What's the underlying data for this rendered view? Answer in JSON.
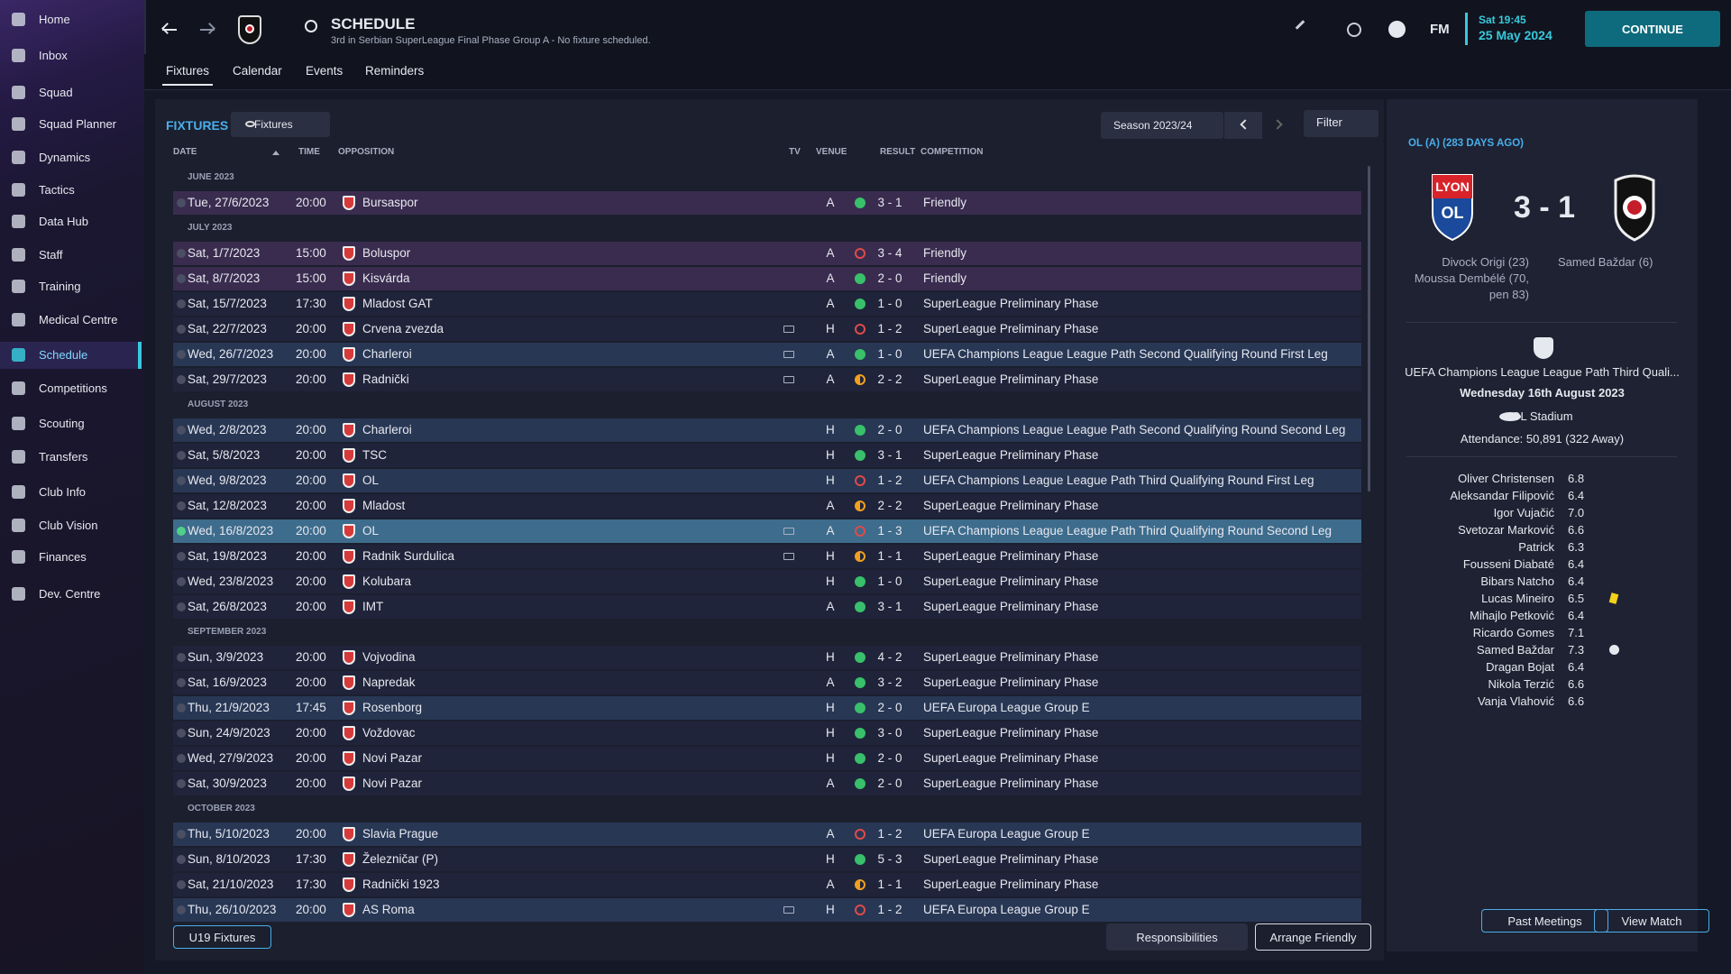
{
  "sidebar": {
    "items": [
      {
        "label": "Home"
      },
      {
        "label": "Inbox"
      },
      {
        "label": "Squad"
      },
      {
        "label": "Squad Planner"
      },
      {
        "label": "Dynamics"
      },
      {
        "label": "Tactics"
      },
      {
        "label": "Data Hub"
      },
      {
        "label": "Staff"
      },
      {
        "label": "Training"
      },
      {
        "label": "Medical Centre"
      },
      {
        "label": "Schedule",
        "active": true
      },
      {
        "label": "Competitions"
      },
      {
        "label": "Scouting"
      },
      {
        "label": "Transfers"
      },
      {
        "label": "Club Info"
      },
      {
        "label": "Club Vision"
      },
      {
        "label": "Finances"
      },
      {
        "label": "Dev. Centre"
      }
    ]
  },
  "header": {
    "title": "SCHEDULE",
    "subtitle": "3rd in Serbian SuperLeague Final Phase Group A - No fixture scheduled.",
    "logo": "FM",
    "time": "Sat 19:45",
    "date": "25 May 2024",
    "continue": "CONTINUE"
  },
  "tabs": [
    {
      "label": "Fixtures",
      "active": true
    },
    {
      "label": "Calendar"
    },
    {
      "label": "Events"
    },
    {
      "label": "Reminders"
    }
  ],
  "fixtures": {
    "title": "FIXTURES",
    "view": "Fixtures",
    "season": "Season 2023/24",
    "filter": "Filter",
    "columns": [
      "DATE",
      "TIME",
      "OPPOSITION",
      "TV",
      "VENUE",
      "RESULT",
      "COMPETITION"
    ],
    "groups": [
      {
        "month": "JUNE 2023",
        "rows": [
          {
            "date": "Tue, 27/6/2023",
            "time": "20:00",
            "opposition": "Bursaspor",
            "venue": "A",
            "result": "3 - 1",
            "competition": "Friendly"
          }
        ]
      },
      {
        "month": "JULY 2023",
        "rows": [
          {
            "date": "Sat, 1/7/2023",
            "time": "15:00",
            "opposition": "Boluspor",
            "venue": "A",
            "result": "3 - 4",
            "competition": "Friendly"
          },
          {
            "date": "Sat, 8/7/2023",
            "time": "15:00",
            "opposition": "Kisvárda",
            "venue": "A",
            "result": "2 - 0",
            "competition": "Friendly"
          },
          {
            "date": "Sat, 15/7/2023",
            "time": "17:30",
            "opposition": "Mladost GAT",
            "venue": "A",
            "result": "1 - 0",
            "competition": "SuperLeague Preliminary Phase"
          },
          {
            "date": "Sat, 22/7/2023",
            "time": "20:00",
            "opposition": "Crvena zvezda",
            "tv": true,
            "venue": "H",
            "result": "1 - 2",
            "competition": "SuperLeague Preliminary Phase"
          },
          {
            "date": "Wed, 26/7/2023",
            "time": "20:00",
            "opposition": "Charleroi",
            "tv": true,
            "venue": "A",
            "result": "1 - 0",
            "competition": "UEFA Champions League League Path Second Qualifying Round First Leg"
          },
          {
            "date": "Sat, 29/7/2023",
            "time": "20:00",
            "opposition": "Radnički",
            "tv": true,
            "venue": "A",
            "result": "2 - 2",
            "competition": "SuperLeague Preliminary Phase"
          }
        ]
      },
      {
        "month": "AUGUST 2023",
        "rows": [
          {
            "date": "Wed, 2/8/2023",
            "time": "20:00",
            "opposition": "Charleroi",
            "venue": "H",
            "result": "2 - 0",
            "competition": "UEFA Champions League League Path Second Qualifying Round Second Leg"
          },
          {
            "date": "Sat, 5/8/2023",
            "time": "20:00",
            "opposition": "TSC",
            "venue": "H",
            "result": "3 - 1",
            "competition": "SuperLeague Preliminary Phase"
          },
          {
            "date": "Wed, 9/8/2023",
            "time": "20:00",
            "opposition": "OL",
            "venue": "H",
            "result": "1 - 2",
            "competition": "UEFA Champions League League Path Third Qualifying Round First Leg"
          },
          {
            "date": "Sat, 12/8/2023",
            "time": "20:00",
            "opposition": "Mladost",
            "venue": "A",
            "result": "2 - 2",
            "competition": "SuperLeague Preliminary Phase"
          },
          {
            "date": "Wed, 16/8/2023",
            "time": "20:00",
            "opposition": "OL",
            "tv": true,
            "venue": "A",
            "result": "1 - 3",
            "competition": "UEFA Champions League League Path Third Qualifying Round Second Leg",
            "selected": true
          },
          {
            "date": "Sat, 19/8/2023",
            "time": "20:00",
            "opposition": "Radnik Surdulica",
            "tv": true,
            "venue": "H",
            "result": "1 - 1",
            "competition": "SuperLeague Preliminary Phase"
          },
          {
            "date": "Wed, 23/8/2023",
            "time": "20:00",
            "opposition": "Kolubara",
            "venue": "H",
            "result": "1 - 0",
            "competition": "SuperLeague Preliminary Phase"
          },
          {
            "date": "Sat, 26/8/2023",
            "time": "20:00",
            "opposition": "IMT",
            "venue": "A",
            "result": "3 - 1",
            "competition": "SuperLeague Preliminary Phase"
          }
        ]
      },
      {
        "month": "SEPTEMBER 2023",
        "rows": [
          {
            "date": "Sun, 3/9/2023",
            "time": "20:00",
            "opposition": "Vojvodina",
            "venue": "H",
            "result": "4 - 2",
            "competition": "SuperLeague Preliminary Phase"
          },
          {
            "date": "Sat, 16/9/2023",
            "time": "20:00",
            "opposition": "Napredak",
            "venue": "A",
            "result": "3 - 2",
            "competition": "SuperLeague Preliminary Phase"
          },
          {
            "date": "Thu, 21/9/2023",
            "time": "17:45",
            "opposition": "Rosenborg",
            "venue": "H",
            "result": "2 - 0",
            "competition": "UEFA Europa League Group E"
          },
          {
            "date": "Sun, 24/9/2023",
            "time": "20:00",
            "opposition": "Voždovac",
            "venue": "H",
            "result": "3 - 0",
            "competition": "SuperLeague Preliminary Phase"
          },
          {
            "date": "Wed, 27/9/2023",
            "time": "20:00",
            "opposition": "Novi Pazar",
            "venue": "H",
            "result": "2 - 0",
            "competition": "SuperLeague Preliminary Phase"
          },
          {
            "date": "Sat, 30/9/2023",
            "time": "20:00",
            "opposition": "Novi Pazar",
            "venue": "A",
            "result": "2 - 0",
            "competition": "SuperLeague Preliminary Phase"
          }
        ]
      },
      {
        "month": "OCTOBER 2023",
        "rows": [
          {
            "date": "Thu, 5/10/2023",
            "time": "20:00",
            "opposition": "Slavia Prague",
            "venue": "A",
            "result": "1 - 2",
            "competition": "UEFA Europa League Group E"
          },
          {
            "date": "Sun, 8/10/2023",
            "time": "17:30",
            "opposition": "Železničar (P)",
            "venue": "H",
            "result": "5 - 3",
            "competition": "SuperLeague Preliminary Phase"
          },
          {
            "date": "Sat, 21/10/2023",
            "time": "17:30",
            "opposition": "Radnički 1923",
            "venue": "A",
            "result": "1 - 1",
            "competition": "SuperLeague Preliminary Phase"
          },
          {
            "date": "Thu, 26/10/2023",
            "time": "20:00",
            "opposition": "AS Roma",
            "tv": true,
            "venue": "H",
            "result": "1 - 2",
            "competition": "UEFA Europa League Group E"
          }
        ]
      }
    ]
  },
  "buttons": {
    "u19": "U19 Fixtures",
    "responsibilities": "Responsibilities",
    "arrange": "Arrange Friendly"
  },
  "match": {
    "title": "OL (A) (283 DAYS AGO)",
    "home_badge": [
      "LYON",
      "OL"
    ],
    "score": "3 - 1",
    "home_scorers": [
      "Divock Origi (23)",
      "Moussa Dembélé (70, pen 83)"
    ],
    "away_scorers": [
      "Samed Baždar (6)"
    ],
    "competition": "UEFA Champions League League Path Third Quali...",
    "date": "Wednesday 16th August 2023",
    "stadium": "OL Stadium",
    "attendance": "Attendance: 50,891 (322 Away)",
    "ratings": [
      {
        "name": "Oliver Christensen",
        "rating": "6.8"
      },
      {
        "name": "Aleksandar Filipović",
        "rating": "6.4"
      },
      {
        "name": "Igor Vujačić",
        "rating": "7.0"
      },
      {
        "name": "Svetozar Marković",
        "rating": "6.6"
      },
      {
        "name": "Patrick",
        "rating": "6.3"
      },
      {
        "name": "Fousseni Diabaté",
        "rating": "6.4"
      },
      {
        "name": "Bibars Natcho",
        "rating": "6.4"
      },
      {
        "name": "Lucas Mineiro",
        "rating": "6.5",
        "yellow_card": true
      },
      {
        "name": "Mihajlo Petković",
        "rating": "6.4"
      },
      {
        "name": "Ricardo Gomes",
        "rating": "7.1"
      },
      {
        "name": "Samed Baždar",
        "rating": "7.3",
        "goal": true
      },
      {
        "name": "Dragan Bojat",
        "rating": "6.4"
      },
      {
        "name": "Nikola Terzić",
        "rating": "6.6"
      },
      {
        "name": "Vanja Vlahović",
        "rating": "6.6"
      }
    ],
    "buttons": [
      "Past Meetings",
      "View Match"
    ]
  }
}
